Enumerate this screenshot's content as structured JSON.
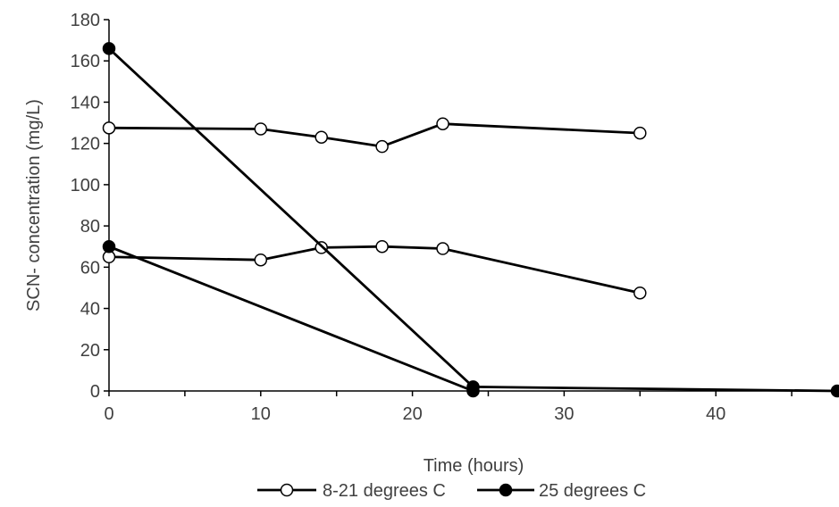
{
  "chart_data": {
    "type": "line",
    "xlabel": "Time (hours)",
    "ylabel": "SCN- concentration (mg/L)",
    "xlim": [
      0,
      48
    ],
    "ylim": [
      0,
      180
    ],
    "xticks": [
      0,
      10,
      20,
      30,
      40
    ],
    "yticks": [
      0,
      20,
      40,
      60,
      80,
      100,
      120,
      140,
      160,
      180
    ],
    "grid": false,
    "legend": "bottom",
    "series": [
      {
        "name": "8-21 degrees C",
        "marker": "open-circle",
        "color": "#000000",
        "lines": [
          {
            "x": [
              0,
              10,
              14,
              18,
              22,
              35
            ],
            "y": [
              127.5,
              127,
              123,
              118.5,
              129.5,
              125
            ]
          },
          {
            "x": [
              0,
              10,
              14,
              18,
              22,
              35
            ],
            "y": [
              65,
              63.5,
              69.5,
              70,
              69,
              47.5
            ]
          }
        ]
      },
      {
        "name": "25 degrees C",
        "marker": "filled-circle",
        "color": "#000000",
        "lines": [
          {
            "x": [
              0,
              24,
              48
            ],
            "y": [
              166,
              2,
              0
            ]
          },
          {
            "x": [
              0,
              24
            ],
            "y": [
              70,
              0
            ]
          }
        ]
      }
    ]
  }
}
